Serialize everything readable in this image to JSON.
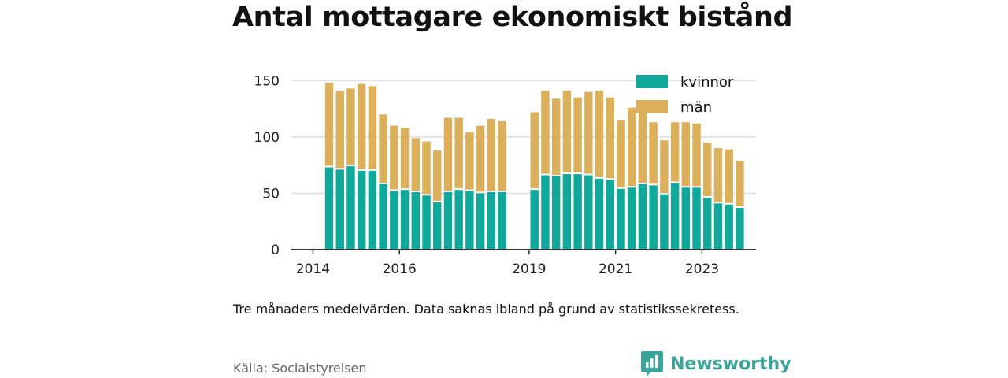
{
  "title": "Antal mottagare ekonomiskt bistånd",
  "note": "Tre månaders medelvärden. Data saknas ibland på grund av statistikssekretess.",
  "source": "Källa: Socialstyrelsen",
  "brand": {
    "name": "Newsworthy",
    "icon": "newsworthy-logo-icon",
    "color": "#3aa39a"
  },
  "colors": {
    "kvinnor": "#10a89a",
    "man": "#dcaf5a",
    "axis": "#333333",
    "grid": "#dddddd"
  },
  "chart_data": {
    "type": "bar",
    "stacked": true,
    "title": "Antal mottagare ekonomiskt bistånd",
    "x_unit": "quarter",
    "x_range": [
      "2013-07",
      "2024-04"
    ],
    "x": [
      "2014-Q2",
      "2014-Q3",
      "2014-Q4",
      "2015-Q1",
      "2015-Q2",
      "2015-Q3",
      "2015-Q4",
      "2016-Q1",
      "2016-Q2",
      "2016-Q3",
      "2016-Q4",
      "2017-Q1",
      "2017-Q2",
      "2017-Q3",
      "2017-Q4",
      "2018-Q1",
      "2018-Q2",
      "2018-Q3",
      "2018-Q4",
      "2019-Q1",
      "2019-Q2",
      "2019-Q3",
      "2019-Q4",
      "2020-Q1",
      "2020-Q2",
      "2020-Q3",
      "2020-Q4",
      "2021-Q1",
      "2021-Q2",
      "2021-Q3",
      "2021-Q4",
      "2022-Q1",
      "2022-Q2",
      "2022-Q3",
      "2022-Q4",
      "2023-Q1",
      "2023-Q2",
      "2023-Q3",
      "2023-Q4",
      "2024-Q1"
    ],
    "series": [
      {
        "name": "kvinnor",
        "color": "#10a89a",
        "values": [
          73,
          71,
          74,
          70,
          70,
          58,
          52,
          53,
          51,
          48,
          42,
          51,
          53,
          52,
          50,
          51,
          51,
          null,
          null,
          53,
          66,
          65,
          67,
          67,
          66,
          63,
          62,
          54,
          55,
          58,
          57,
          49,
          59,
          55,
          55,
          46,
          41,
          40,
          37,
          null
        ]
      },
      {
        "name": "män",
        "color": "#dcaf5a",
        "values": [
          75,
          70,
          69,
          77,
          75,
          62,
          58,
          55,
          48,
          48,
          46,
          66,
          64,
          52,
          60,
          65,
          63,
          null,
          null,
          69,
          75,
          69,
          74,
          68,
          74,
          78,
          73,
          61,
          71,
          67,
          56,
          48,
          54,
          58,
          57,
          49,
          49,
          49,
          42,
          null
        ]
      }
    ],
    "xticks": [
      "2014",
      "2016",
      "2019",
      "2021",
      "2023"
    ],
    "xtick_values": [
      "2014-01",
      "2016-01",
      "2019-01",
      "2021-01",
      "2023-01"
    ],
    "yticks": [
      0,
      50,
      100,
      150
    ],
    "ylim": [
      0,
      160
    ],
    "grid": true,
    "legend": {
      "position": "top-right",
      "entries": [
        "kvinnor",
        "män"
      ]
    }
  }
}
